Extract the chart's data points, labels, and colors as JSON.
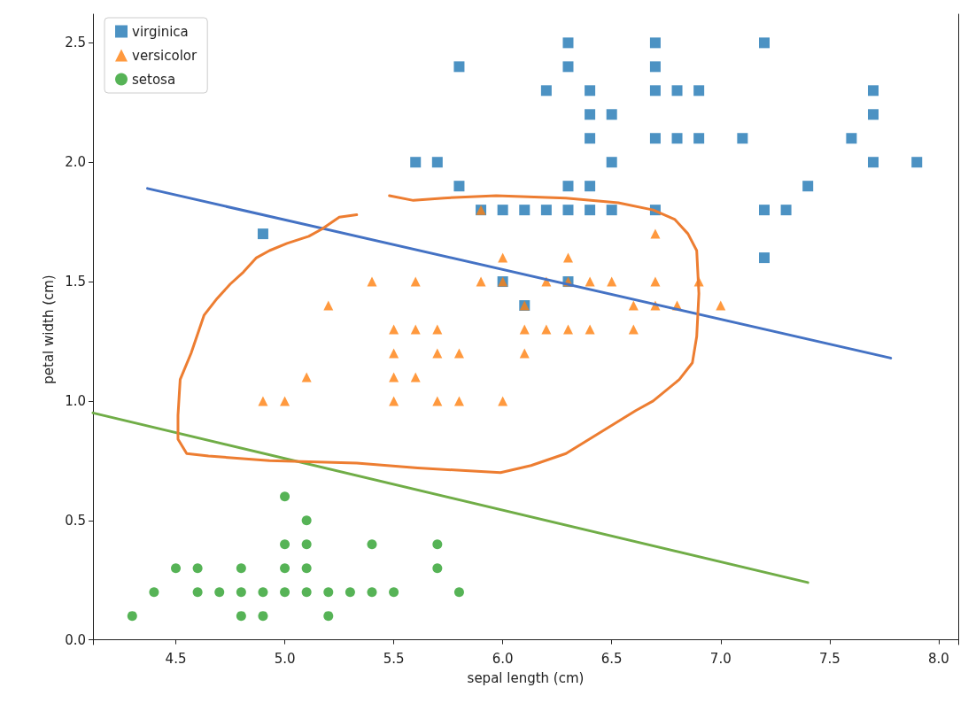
{
  "chart_data": {
    "type": "scatter",
    "xlabel": "sepal length (cm)",
    "ylabel": "petal width (cm)",
    "xlim": [
      4.12,
      8.09
    ],
    "xticks": [
      4.5,
      {
        "value": 5,
        "label": "5.0"
      },
      5.5,
      {
        "value": 6,
        "label": "6.0"
      },
      6.5,
      {
        "value": 7,
        "label": "7.0"
      },
      7.5,
      {
        "value": 8,
        "label": "8.0"
      }
    ],
    "ylim": [
      -0.02,
      2.62
    ],
    "yticks": [
      {
        "value": 0,
        "label": "0.0"
      },
      0.5,
      {
        "value": 1,
        "label": "1.0"
      },
      1.5,
      {
        "value": 2,
        "label": "2.0"
      },
      2.5
    ],
    "grid": false,
    "legend": "top left",
    "series": [
      {
        "name": "virginica",
        "marker": "square",
        "color": "#1f77b4",
        "x": [
          4.9,
          5.6,
          5.7,
          5.8,
          5.8,
          5.9,
          6.0,
          6.0,
          6.1,
          6.1,
          6.2,
          6.2,
          6.3,
          6.3,
          6.3,
          6.3,
          6.3,
          6.4,
          6.4,
          6.4,
          6.4,
          6.4,
          6.5,
          6.5,
          6.5,
          6.7,
          6.7,
          6.7,
          6.7,
          6.7,
          6.8,
          6.8,
          6.9,
          6.9,
          7.1,
          7.2,
          7.2,
          7.2,
          7.3,
          7.4,
          7.6,
          7.7,
          7.7,
          7.7,
          7.9
        ],
        "values": [
          1.7,
          2.0,
          2.0,
          2.4,
          1.9,
          1.8,
          1.8,
          1.5,
          1.8,
          1.4,
          2.3,
          1.8,
          2.5,
          2.4,
          1.9,
          1.8,
          1.5,
          2.3,
          2.2,
          2.1,
          1.9,
          1.8,
          2.2,
          2.0,
          1.8,
          2.5,
          2.4,
          2.3,
          2.1,
          1.8,
          2.3,
          2.1,
          2.3,
          2.1,
          2.1,
          2.5,
          1.8,
          1.6,
          1.8,
          1.9,
          2.1,
          2.3,
          2.2,
          2.0,
          2.0
        ]
      },
      {
        "name": "versicolor",
        "marker": "triangle",
        "color": "#ff7f0e",
        "x": [
          4.9,
          5.0,
          5.1,
          5.2,
          5.4,
          5.5,
          5.5,
          5.5,
          5.5,
          5.6,
          5.6,
          5.6,
          5.7,
          5.7,
          5.7,
          5.8,
          5.8,
          5.9,
          5.9,
          6.0,
          6.0,
          6.0,
          6.1,
          6.1,
          6.1,
          6.2,
          6.2,
          6.3,
          6.3,
          6.3,
          6.4,
          6.4,
          6.5,
          6.6,
          6.6,
          6.7,
          6.7,
          6.7,
          6.8,
          6.9,
          7.0
        ],
        "values": [
          1.0,
          1.0,
          1.1,
          1.4,
          1.5,
          1.3,
          1.2,
          1.1,
          1.0,
          1.5,
          1.3,
          1.1,
          1.3,
          1.2,
          1.0,
          1.2,
          1.0,
          1.8,
          1.5,
          1.6,
          1.5,
          1.0,
          1.4,
          1.3,
          1.2,
          1.5,
          1.3,
          1.6,
          1.5,
          1.3,
          1.5,
          1.3,
          1.5,
          1.4,
          1.3,
          1.7,
          1.5,
          1.4,
          1.4,
          1.5,
          1.4
        ]
      },
      {
        "name": "setosa",
        "marker": "circle",
        "color": "#2ca02c",
        "x": [
          4.3,
          4.4,
          4.5,
          4.6,
          4.6,
          4.7,
          4.8,
          4.8,
          4.8,
          4.9,
          4.9,
          5.0,
          5.0,
          5.0,
          5.0,
          5.1,
          5.1,
          5.1,
          5.1,
          5.2,
          5.2,
          5.3,
          5.4,
          5.4,
          5.5,
          5.7,
          5.7,
          5.8
        ],
        "values": [
          0.1,
          0.2,
          0.3,
          0.3,
          0.2,
          0.2,
          0.3,
          0.2,
          0.1,
          0.2,
          0.1,
          0.6,
          0.4,
          0.3,
          0.2,
          0.5,
          0.4,
          0.3,
          0.2,
          0.2,
          0.1,
          0.2,
          0.4,
          0.2,
          0.2,
          0.4,
          0.3,
          0.2
        ]
      },
      {
        "type": "line",
        "marker": "none",
        "color": "#4472c4",
        "x": [
          4.37,
          7.78
        ],
        "values": [
          1.89,
          1.18
        ]
      },
      {
        "type": "line",
        "marker": "none",
        "color": "#70ad47",
        "x": [
          4.12,
          7.4
        ],
        "values": [
          0.95,
          0.24
        ]
      },
      {
        "type": "line",
        "marker": "none",
        "color": "#ed7d31",
        "x": [
          5.48,
          5.59,
          5.73,
          5.97,
          6.29,
          6.53,
          6.69,
          6.79,
          6.85,
          6.89,
          6.9,
          6.89,
          6.87,
          6.81,
          6.69,
          6.61,
          6.45,
          6.29,
          6.13,
          5.99,
          5.61,
          5.33,
          4.93,
          4.65,
          4.55,
          4.51,
          4.51,
          4.52,
          4.57,
          4.63,
          4.69,
          4.75,
          4.81,
          4.87,
          4.93,
          5.01,
          5.11,
          5.17,
          5.25,
          5.33
        ],
        "values": [
          1.86,
          1.84,
          1.85,
          1.86,
          1.85,
          1.83,
          1.8,
          1.76,
          1.7,
          1.63,
          1.45,
          1.27,
          1.16,
          1.09,
          1.0,
          0.96,
          0.87,
          0.78,
          0.73,
          0.7,
          0.72,
          0.74,
          0.75,
          0.77,
          0.78,
          0.84,
          0.94,
          1.09,
          1.2,
          1.36,
          1.43,
          1.49,
          1.54,
          1.6,
          1.63,
          1.66,
          1.69,
          1.72,
          1.77,
          1.78
        ]
      }
    ]
  }
}
